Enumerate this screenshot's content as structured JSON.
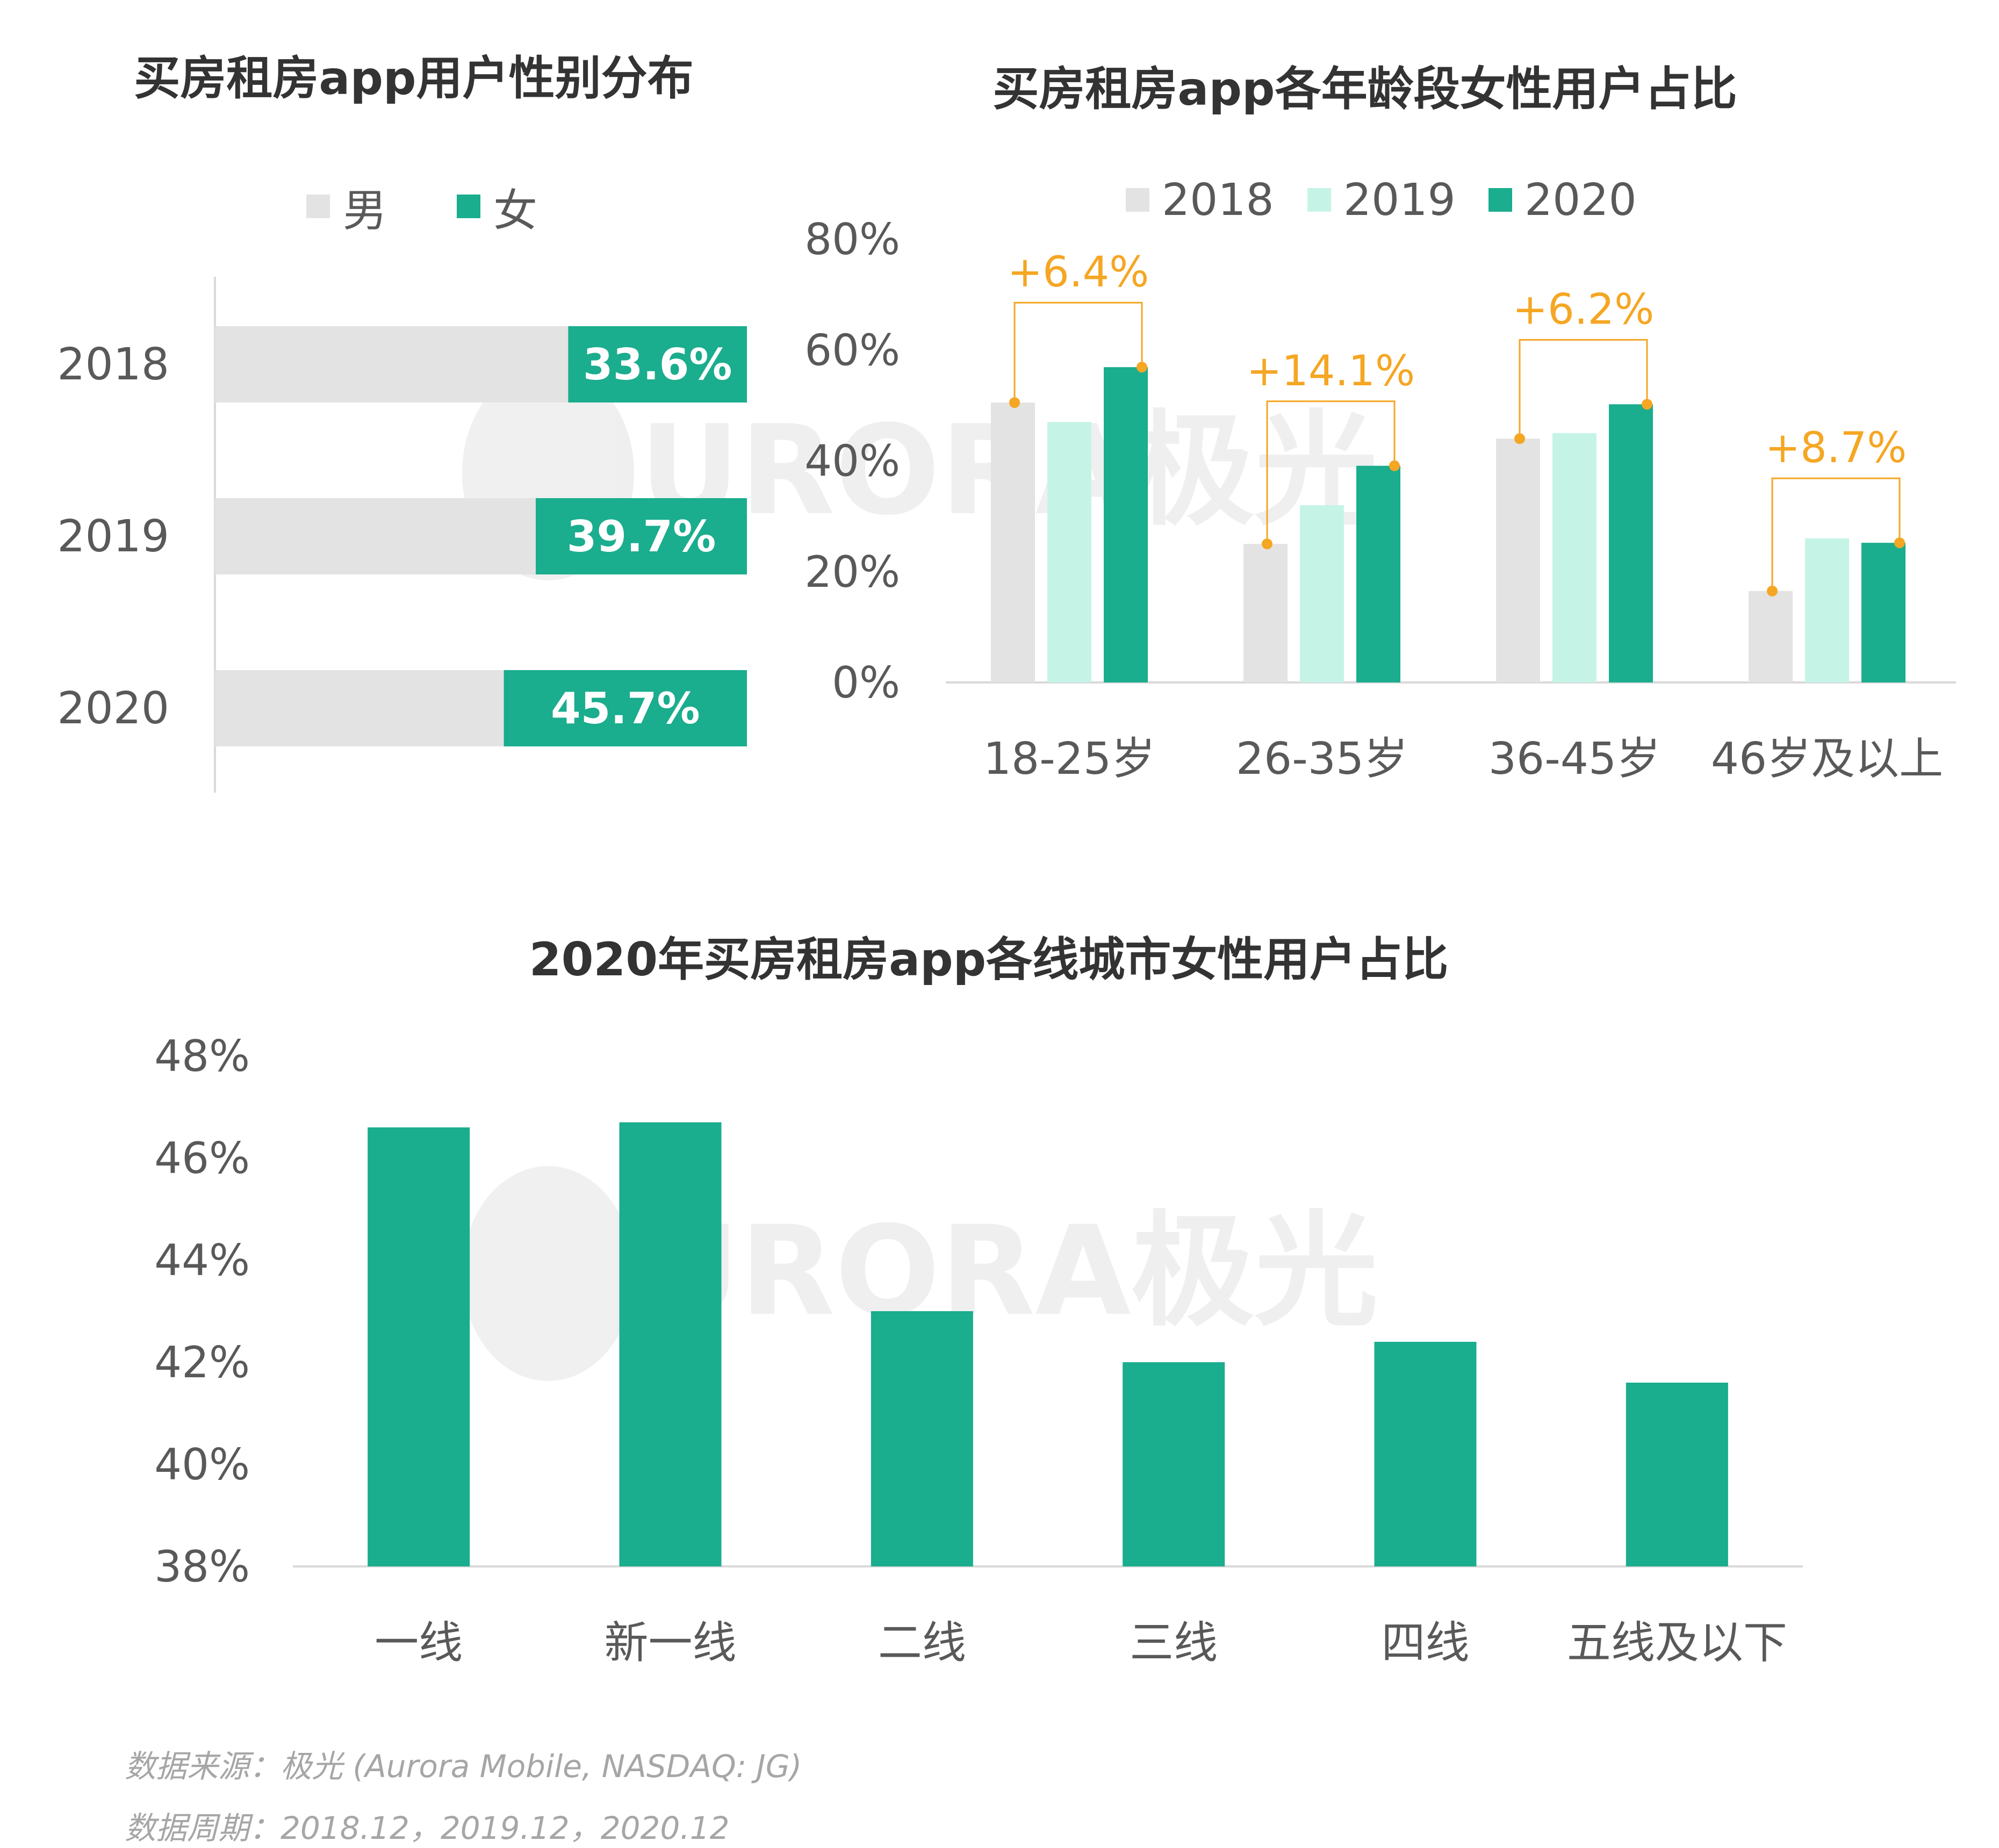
{
  "colors": {
    "male": "#E3E3E3",
    "female": "#1AAD8E",
    "y2018": "#E3E3E3",
    "y2019": "#C5F4E7",
    "y2020": "#1AAD8E",
    "annotation": "#F5A623",
    "axis": "#D9D9D9"
  },
  "watermark": {
    "text": "URORA极光"
  },
  "chart_data": [
    {
      "type": "bar",
      "orientation": "horizontal",
      "stacked": true,
      "title": "买房租房app用户性别分布",
      "legend": [
        "男",
        "女"
      ],
      "categories": [
        "2018",
        "2019",
        "2020"
      ],
      "series": [
        {
          "name": "男",
          "values": [
            66.4,
            60.3,
            54.3
          ]
        },
        {
          "name": "女",
          "values": [
            33.6,
            39.7,
            45.7
          ],
          "labels": [
            "33.6%",
            "39.7%",
            "45.7%"
          ]
        }
      ],
      "xlim": [
        0,
        100
      ]
    },
    {
      "type": "bar",
      "title": "买房租房app各年龄段女性用户占比",
      "legend": [
        "2018",
        "2019",
        "2020"
      ],
      "legend_position": "top",
      "categories": [
        "18-25岁",
        "26-35岁",
        "36-45岁",
        "46岁及以上"
      ],
      "series": [
        {
          "name": "2018",
          "values": [
            50.5,
            25.0,
            44.0,
            16.5
          ]
        },
        {
          "name": "2019",
          "values": [
            47.0,
            32.0,
            45.0,
            26.0
          ]
        },
        {
          "name": "2020",
          "values": [
            56.9,
            39.1,
            50.2,
            25.2
          ]
        }
      ],
      "yticks": [
        "0%",
        "20%",
        "40%",
        "60%",
        "80%"
      ],
      "ylim": [
        0,
        80
      ],
      "annotations": [
        "+6.4%",
        "+14.1%",
        "+6.2%",
        "+8.7%"
      ]
    },
    {
      "type": "bar",
      "title": "2020年买房租房app各线城市女性用户占比",
      "categories": [
        "一线",
        "新一线",
        "二线",
        "三线",
        "四线",
        "五线及以下"
      ],
      "values": [
        46.6,
        46.7,
        43.0,
        42.0,
        42.4,
        41.6
      ],
      "yticks": [
        "38%",
        "40%",
        "42%",
        "44%",
        "46%",
        "48%"
      ],
      "ylim": [
        38,
        48
      ]
    }
  ],
  "footer": {
    "source": "数据来源：极光 (Aurora Mobile, NASDAQ: JG)",
    "period": "数据周期：2018.12，2019.12，2020.12"
  }
}
